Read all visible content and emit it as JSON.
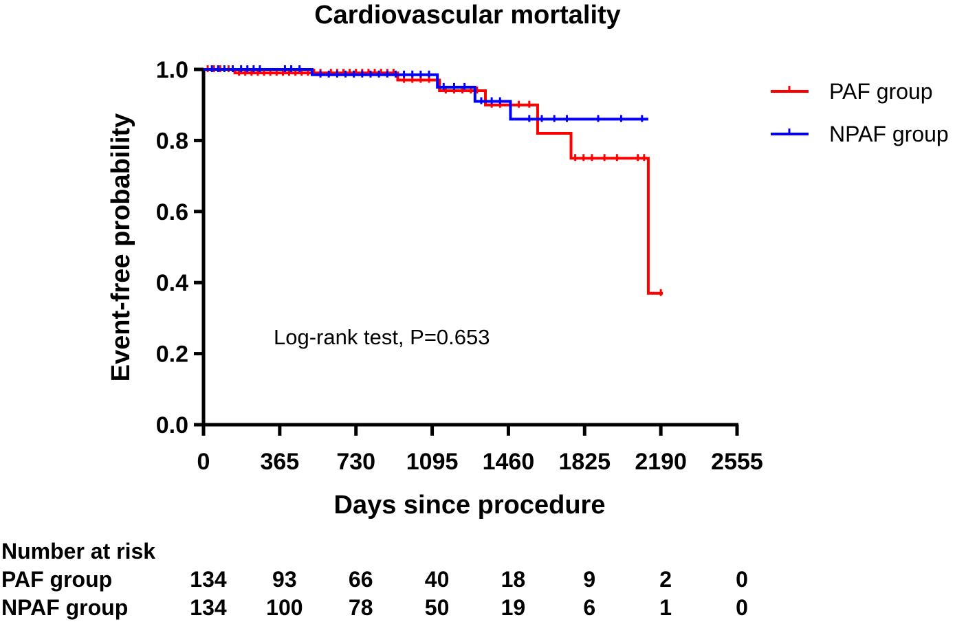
{
  "chart_data": {
    "type": "line",
    "subtype": "kaplan-meier step",
    "title": "Cardiovascular mortality",
    "xlabel": "Days since procedure",
    "ylabel": "Event-free probability",
    "xlim": [
      0,
      2555
    ],
    "ylim": [
      0.0,
      1.0
    ],
    "xticks": [
      "0",
      "365",
      "730",
      "1095",
      "1460",
      "1825",
      "2190",
      "2555"
    ],
    "yticks": [
      "0.0",
      "0.2",
      "0.4",
      "0.6",
      "0.8",
      "1.0"
    ],
    "annotation": "Log-rank test, P=0.653",
    "legend_position": "top-right",
    "series": [
      {
        "name": "PAF group",
        "color": "#ff0000",
        "steps": [
          [
            0,
            1.0
          ],
          [
            150,
            0.99
          ],
          [
            590,
            0.99
          ],
          [
            930,
            0.97
          ],
          [
            1130,
            0.94
          ],
          [
            1350,
            0.9
          ],
          [
            1600,
            0.82
          ],
          [
            1760,
            0.75
          ],
          [
            2130,
            0.37
          ],
          [
            2200,
            0.37
          ]
        ],
        "censored": [
          [
            20,
            1.0
          ],
          [
            50,
            1.0
          ],
          [
            80,
            1.0
          ],
          [
            120,
            1.0
          ],
          [
            170,
            0.99
          ],
          [
            200,
            0.99
          ],
          [
            230,
            0.99
          ],
          [
            260,
            0.99
          ],
          [
            290,
            0.99
          ],
          [
            320,
            0.99
          ],
          [
            350,
            0.99
          ],
          [
            380,
            0.99
          ],
          [
            410,
            0.99
          ],
          [
            440,
            0.99
          ],
          [
            470,
            0.99
          ],
          [
            500,
            0.99
          ],
          [
            530,
            0.99
          ],
          [
            560,
            0.99
          ],
          [
            610,
            0.99
          ],
          [
            640,
            0.99
          ],
          [
            670,
            0.99
          ],
          [
            700,
            0.99
          ],
          [
            730,
            0.99
          ],
          [
            760,
            0.99
          ],
          [
            790,
            0.99
          ],
          [
            820,
            0.99
          ],
          [
            850,
            0.99
          ],
          [
            880,
            0.99
          ],
          [
            910,
            0.99
          ],
          [
            960,
            0.97
          ],
          [
            1000,
            0.97
          ],
          [
            1040,
            0.97
          ],
          [
            1080,
            0.97
          ],
          [
            1160,
            0.94
          ],
          [
            1200,
            0.94
          ],
          [
            1240,
            0.94
          ],
          [
            1280,
            0.94
          ],
          [
            1310,
            0.94
          ],
          [
            1380,
            0.9
          ],
          [
            1420,
            0.9
          ],
          [
            1470,
            0.9
          ],
          [
            1510,
            0.9
          ],
          [
            1560,
            0.9
          ],
          [
            1780,
            0.75
          ],
          [
            1820,
            0.75
          ],
          [
            1860,
            0.75
          ],
          [
            1920,
            0.75
          ],
          [
            1980,
            0.75
          ],
          [
            2080,
            0.75
          ],
          [
            2110,
            0.75
          ],
          [
            2190,
            0.37
          ]
        ]
      },
      {
        "name": "NPAF group",
        "color": "#0000ff",
        "steps": [
          [
            0,
            1.0
          ],
          [
            520,
            0.985
          ],
          [
            1120,
            0.95
          ],
          [
            1300,
            0.91
          ],
          [
            1470,
            0.86
          ],
          [
            2130,
            0.86
          ]
        ],
        "censored": [
          [
            40,
            1.0
          ],
          [
            70,
            1.0
          ],
          [
            100,
            1.0
          ],
          [
            140,
            1.0
          ],
          [
            180,
            1.0
          ],
          [
            210,
            1.0
          ],
          [
            240,
            1.0
          ],
          [
            270,
            1.0
          ],
          [
            390,
            1.0
          ],
          [
            420,
            1.0
          ],
          [
            460,
            1.0
          ],
          [
            560,
            0.985
          ],
          [
            600,
            0.985
          ],
          [
            640,
            0.985
          ],
          [
            680,
            0.985
          ],
          [
            720,
            0.985
          ],
          [
            760,
            0.985
          ],
          [
            800,
            0.985
          ],
          [
            840,
            0.985
          ],
          [
            880,
            0.985
          ],
          [
            920,
            0.985
          ],
          [
            960,
            0.985
          ],
          [
            1000,
            0.985
          ],
          [
            1040,
            0.985
          ],
          [
            1080,
            0.985
          ],
          [
            1150,
            0.95
          ],
          [
            1200,
            0.95
          ],
          [
            1250,
            0.95
          ],
          [
            1330,
            0.91
          ],
          [
            1380,
            0.91
          ],
          [
            1420,
            0.91
          ],
          [
            1560,
            0.86
          ],
          [
            1620,
            0.86
          ],
          [
            1680,
            0.86
          ],
          [
            1740,
            0.86
          ],
          [
            1890,
            0.86
          ],
          [
            2000,
            0.86
          ],
          [
            2100,
            0.86
          ]
        ]
      }
    ],
    "risk_table": {
      "header": "Number at risk",
      "rows": [
        {
          "label": "PAF group",
          "values": [
            "134",
            "93",
            "66",
            "40",
            "18",
            "9",
            "2",
            "0"
          ]
        },
        {
          "label": "NPAF group",
          "values": [
            "134",
            "100",
            "78",
            "50",
            "19",
            "6",
            "1",
            "0"
          ]
        }
      ]
    }
  }
}
